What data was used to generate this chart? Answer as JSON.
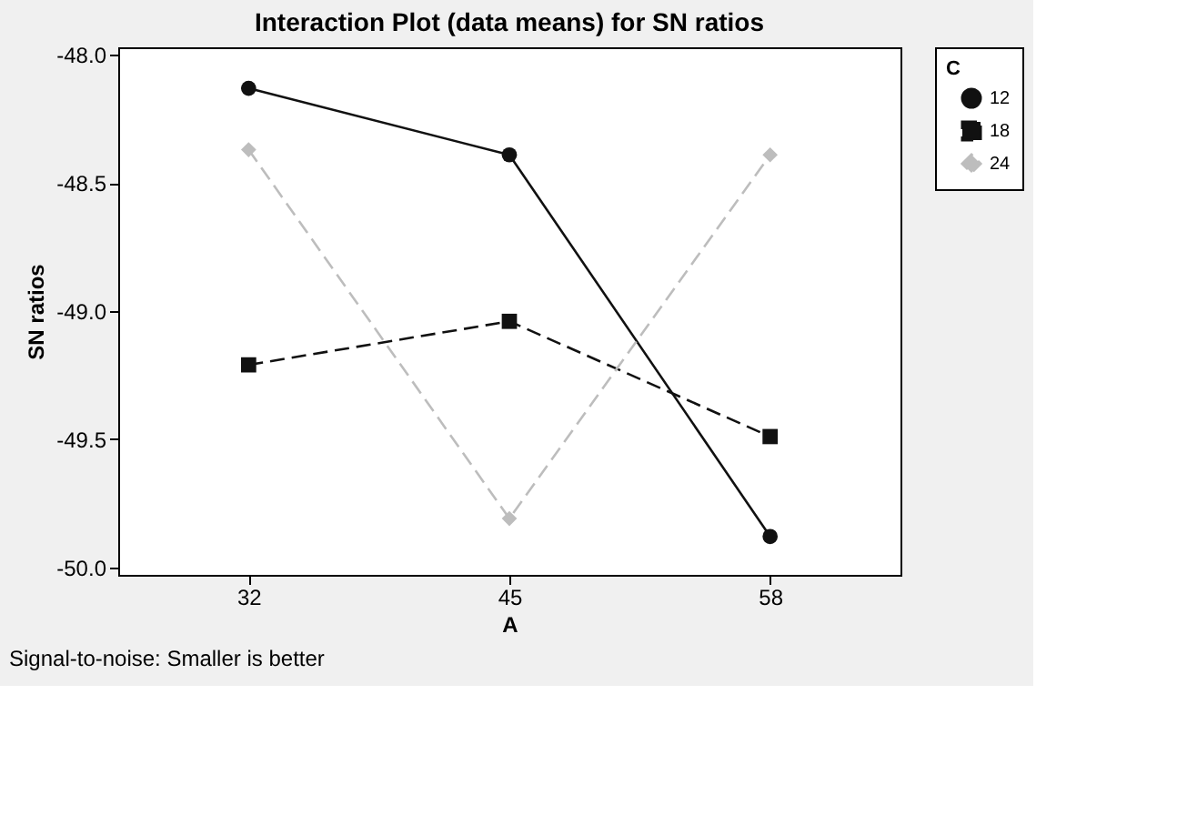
{
  "chart_data": {
    "type": "line",
    "title": "Interaction Plot (data means) for SN ratios",
    "xlabel": "A",
    "ylabel": "SN ratios",
    "legend_title": "C",
    "categories": [
      "32",
      "45",
      "58"
    ],
    "series": [
      {
        "name": "12",
        "color": "#111111",
        "values": [
          -48.13,
          -48.39,
          -49.88
        ],
        "marker": "circle",
        "line_style": "solid"
      },
      {
        "name": "18",
        "color": "#111111",
        "values": [
          -49.21,
          -49.04,
          -49.49
        ],
        "marker": "square",
        "line_style": "dashed"
      },
      {
        "name": "24",
        "color": "#bdbdbd",
        "values": [
          -48.37,
          -49.81,
          -48.39
        ],
        "marker": "diamond",
        "line_style": "dashed"
      }
    ],
    "ylim": [
      -50.03,
      -47.97
    ],
    "yticks": [
      {
        "value": -48.0,
        "label": "-48.0"
      },
      {
        "value": -48.5,
        "label": "-48.5"
      },
      {
        "value": -49.0,
        "label": "-49.0"
      },
      {
        "value": -49.5,
        "label": "-49.5"
      },
      {
        "value": -50.0,
        "label": "-50.0"
      }
    ],
    "grid": false,
    "legend": "top right",
    "annotations": [
      "Signal-to-noise: Smaller is better"
    ]
  }
}
